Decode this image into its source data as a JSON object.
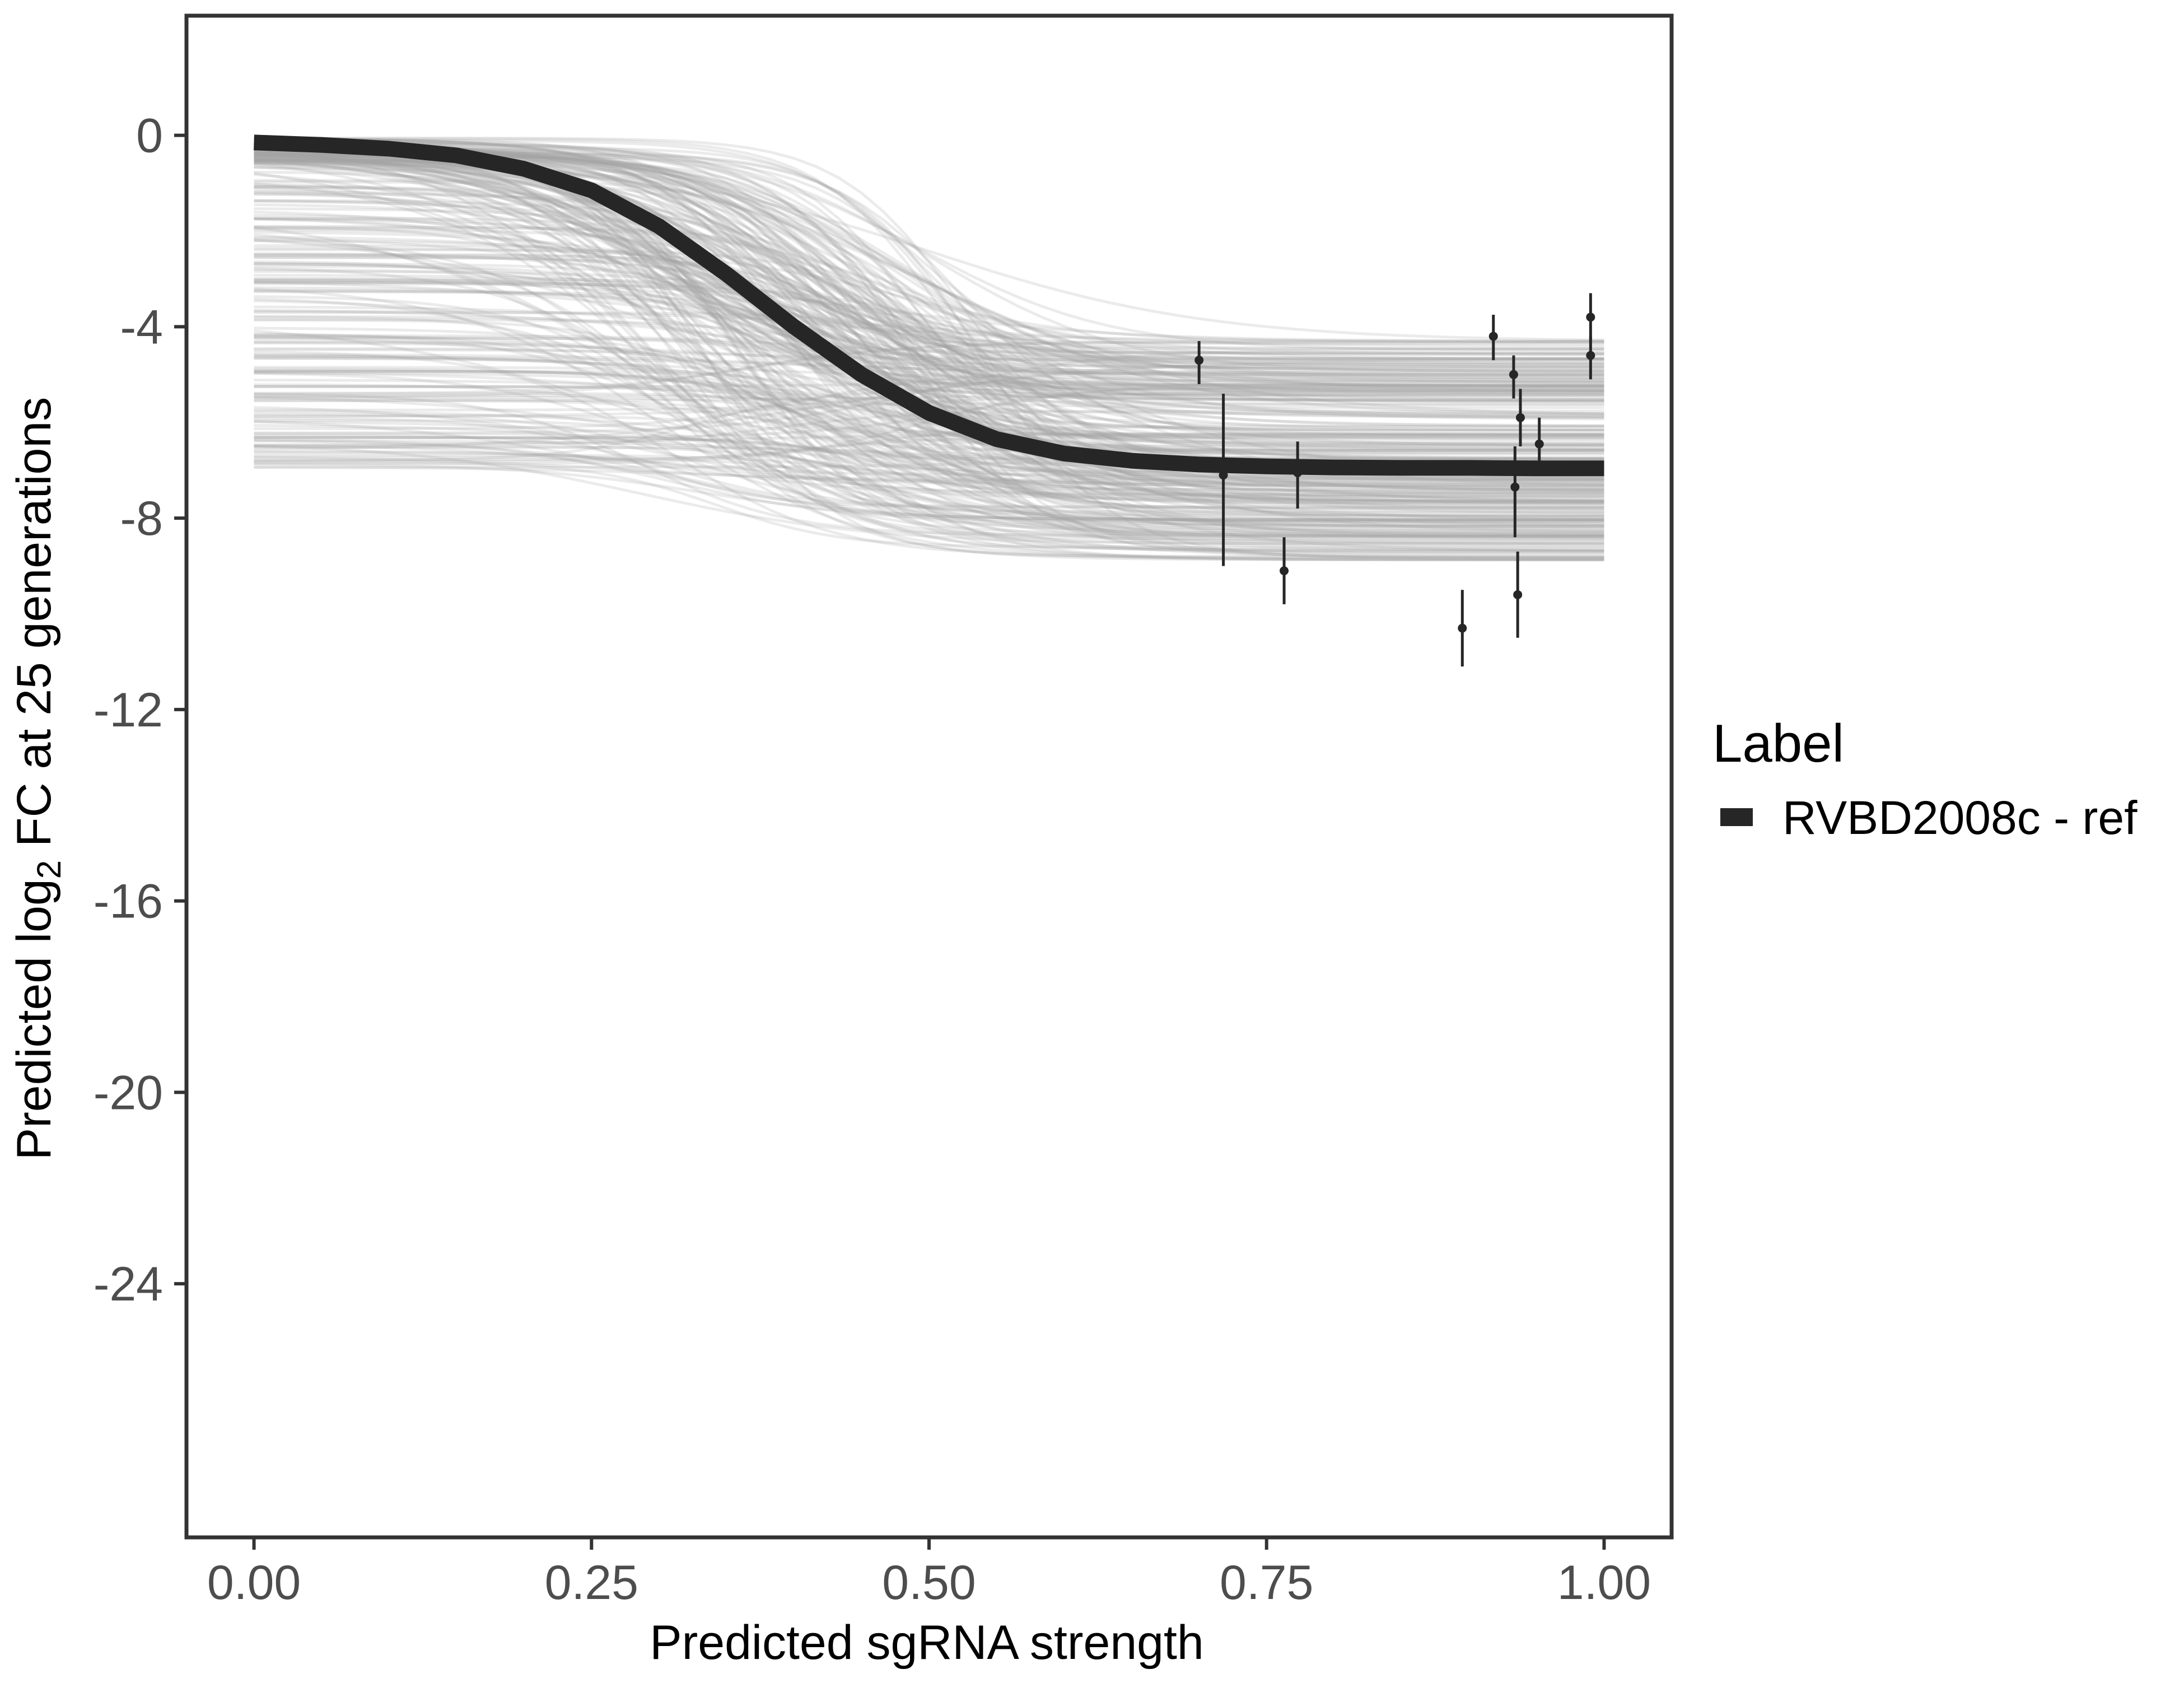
{
  "chart_data": {
    "type": "line",
    "title": "",
    "xlabel": "Predicted sgRNA strength",
    "ylabel": {
      "prefix": "Predicted  log",
      "subscript": "2",
      "suffix": " FC at 25 generations"
    },
    "xlim": [
      -0.05,
      1.05
    ],
    "ylim": [
      -29.3,
      2.5
    ],
    "x_ticks": [
      0.0,
      0.25,
      0.5,
      0.75,
      1.0
    ],
    "x_tick_labels": [
      "0.00",
      "0.25",
      "0.50",
      "0.75",
      "1.00"
    ],
    "y_ticks": [
      0,
      -4,
      -8,
      -12,
      -16,
      -20,
      -24
    ],
    "y_tick_labels": [
      "0",
      "-4",
      "-8",
      "-12",
      "-16",
      "-20",
      "-24"
    ],
    "grid": false,
    "legend": {
      "title": "Label",
      "position": "right",
      "entries": [
        {
          "label": "RVBD2008c - ref",
          "color": "#262626"
        }
      ]
    },
    "series": [
      {
        "name": "RVBD2008c - ref",
        "type": "line",
        "color": "#262626",
        "x": [
          0.0,
          0.05,
          0.1,
          0.15,
          0.2,
          0.25,
          0.3,
          0.35,
          0.4,
          0.45,
          0.5,
          0.55,
          0.6,
          0.65,
          0.7,
          0.75,
          0.8,
          0.85,
          0.9,
          0.95,
          1.0
        ],
        "y": [
          -0.15,
          -0.2,
          -0.28,
          -0.42,
          -0.7,
          -1.15,
          -1.9,
          -2.9,
          -4.0,
          -5.0,
          -5.8,
          -6.35,
          -6.65,
          -6.8,
          -6.88,
          -6.92,
          -6.94,
          -6.95,
          -6.95,
          -6.96,
          -6.96
        ]
      }
    ],
    "posterior_samples": {
      "description_color": "#a6a6a6",
      "count": 300
    },
    "points": [
      {
        "x": 0.7,
        "y": -4.7,
        "ymin": -5.2,
        "ymax": -4.3
      },
      {
        "x": 0.718,
        "y": -7.1,
        "ymin": -9.0,
        "ymax": -5.4
      },
      {
        "x": 0.763,
        "y": -9.1,
        "ymin": -9.8,
        "ymax": -8.4
      },
      {
        "x": 0.773,
        "y": -7.05,
        "ymin": -7.8,
        "ymax": -6.4
      },
      {
        "x": 0.895,
        "y": -10.3,
        "ymin": -11.1,
        "ymax": -9.5
      },
      {
        "x": 0.918,
        "y": -4.2,
        "ymin": -4.7,
        "ymax": -3.75
      },
      {
        "x": 0.933,
        "y": -5.0,
        "ymin": -5.5,
        "ymax": -4.6
      },
      {
        "x": 0.934,
        "y": -7.35,
        "ymin": -8.4,
        "ymax": -6.5
      },
      {
        "x": 0.936,
        "y": -9.6,
        "ymin": -10.5,
        "ymax": -8.7
      },
      {
        "x": 0.938,
        "y": -5.9,
        "ymin": -6.5,
        "ymax": -5.3
      },
      {
        "x": 0.952,
        "y": -6.45,
        "ymin": -7.0,
        "ymax": -5.9
      },
      {
        "x": 0.99,
        "y": -3.8,
        "ymin": -4.3,
        "ymax": -3.3
      },
      {
        "x": 0.99,
        "y": -4.6,
        "ymin": -5.1,
        "ymax": -4.2
      }
    ]
  }
}
